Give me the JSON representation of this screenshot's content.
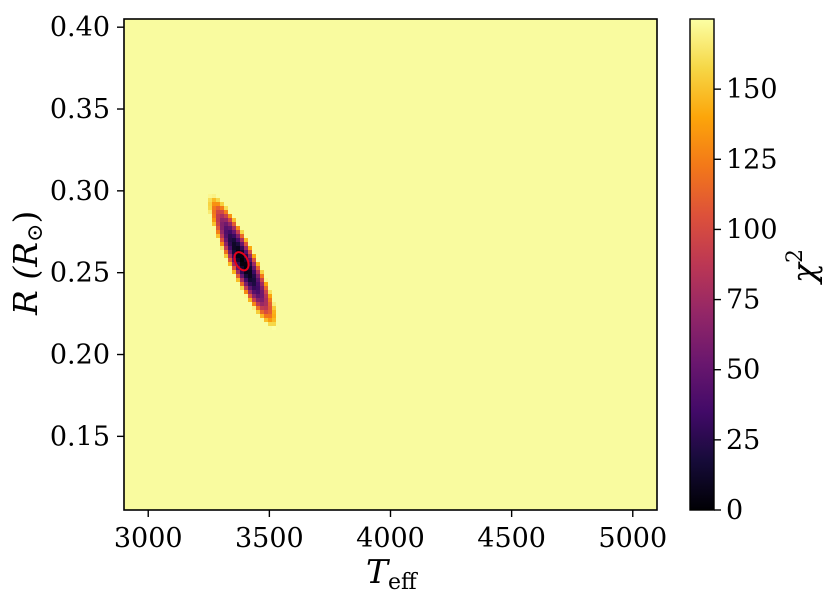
{
  "chart_data": {
    "type": "heatmap",
    "title": "",
    "xlabel": "T",
    "xlabel_subscript": "eff",
    "ylabel": "R (R",
    "ylabel_symbol": "⊙",
    "ylabel_close": ")",
    "colorbar_label": "χ",
    "colorbar_label_superscript": "2",
    "colormap": "inferno",
    "background_value": "saturated (>= 175)",
    "xlim": [
      2900,
      5100
    ],
    "ylim": [
      0.105,
      0.405
    ],
    "xticks": [
      3000,
      3500,
      4000,
      4500,
      5000
    ],
    "xtick_labels": [
      "3000",
      "3500",
      "4000",
      "4500",
      "5000"
    ],
    "yticks": [
      0.15,
      0.2,
      0.25,
      0.3,
      0.35,
      0.4
    ],
    "ytick_labels": [
      "0.15",
      "0.20",
      "0.25",
      "0.30",
      "0.35",
      "0.40"
    ],
    "colorbar_range": [
      0,
      175
    ],
    "colorbar_ticks": [
      0,
      25,
      50,
      75,
      100,
      125,
      150
    ],
    "colorbar_tick_labels": [
      "0",
      "25",
      "50",
      "75",
      "100",
      "125",
      "150"
    ],
    "minimum": {
      "teff": 3390,
      "radius": 0.257,
      "chi2": 0
    },
    "valley_extent": {
      "upper_left": {
        "teff": 3265,
        "radius": 0.3
      },
      "lower_right": {
        "teff": 3535,
        "radius": 0.218
      }
    },
    "red_contour": {
      "center_teff": 3385,
      "center_radius": 0.257,
      "half_width_teff": 25,
      "half_width_radius": 0.006,
      "color": "#e6001a"
    },
    "grid": false
  }
}
